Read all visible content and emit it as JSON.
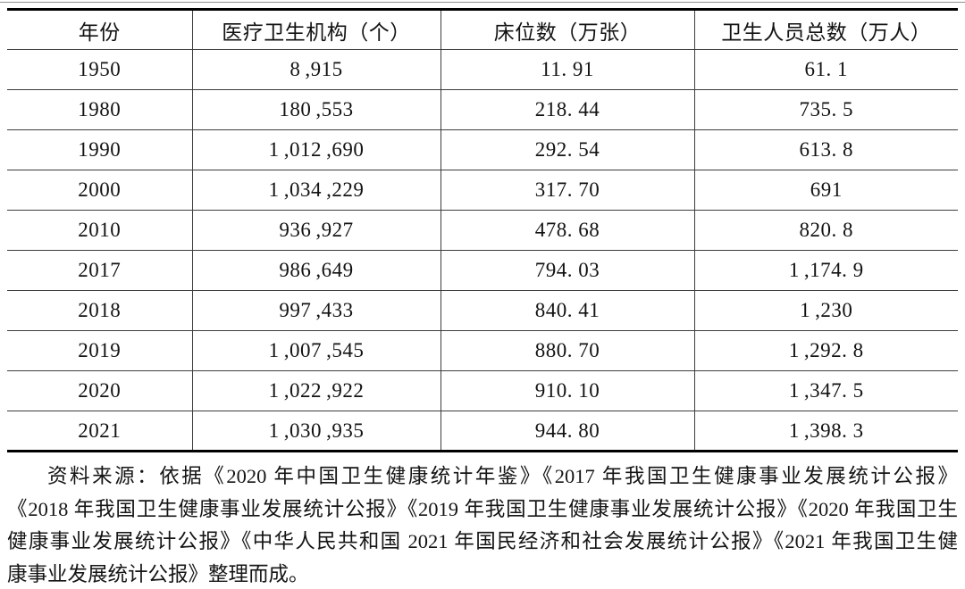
{
  "colors": {
    "page_background": "#ffffff",
    "text": "#121212",
    "table_outer_border": "#000000",
    "table_grid_line": "#3d3d3d",
    "top_rule": "#8f8f8f"
  },
  "table": {
    "columns": [
      "年份",
      "医疗卫生机构（个）",
      "床位数（万张）",
      "卫生人员总数（万人）"
    ],
    "rows": [
      {
        "cells": [
          "1950",
          "8 ,915",
          "11. 91",
          "61. 1"
        ]
      },
      {
        "cells": [
          "1980",
          "180 ,553",
          "218. 44",
          "735. 5"
        ]
      },
      {
        "cells": [
          "1990",
          "1 ,012 ,690",
          "292. 54",
          "613. 8"
        ]
      },
      {
        "cells": [
          "2000",
          "1 ,034 ,229",
          "317. 70",
          "691"
        ]
      },
      {
        "cells": [
          "2010",
          "936 ,927",
          "478. 68",
          "820. 8"
        ]
      },
      {
        "cells": [
          "2017",
          "986 ,649",
          "794. 03",
          "1 ,174. 9"
        ]
      },
      {
        "cells": [
          "2018",
          "997 ,433",
          "840. 41",
          "1 ,230"
        ]
      },
      {
        "cells": [
          "2019",
          "1 ,007 ,545",
          "880. 70",
          "1 ,292. 8"
        ]
      },
      {
        "cells": [
          "2020",
          "1 ,022 ,922",
          "910. 10",
          "1 ,347. 5"
        ]
      },
      {
        "cells": [
          "2021",
          "1 ,030 ,935",
          "944. 80",
          "1 ,398. 3"
        ]
      }
    ]
  },
  "source_note": {
    "lines": [
      "资料来源：依据《2020 年中国卫生健康统计年鉴》《2017 年我国卫生健康事业发展统计公报》",
      "《2018 年我国卫生健康事业发展统计公报》《2019 年我国卫生健康事业发展统计公报》《2020 年我国卫生",
      "健康事业发展统计公报》《中华人民共和国 2021 年国民经济和社会发展统计公报》《2021 年我国卫生健",
      "康事业发展统计公报》整理而成。"
    ]
  }
}
